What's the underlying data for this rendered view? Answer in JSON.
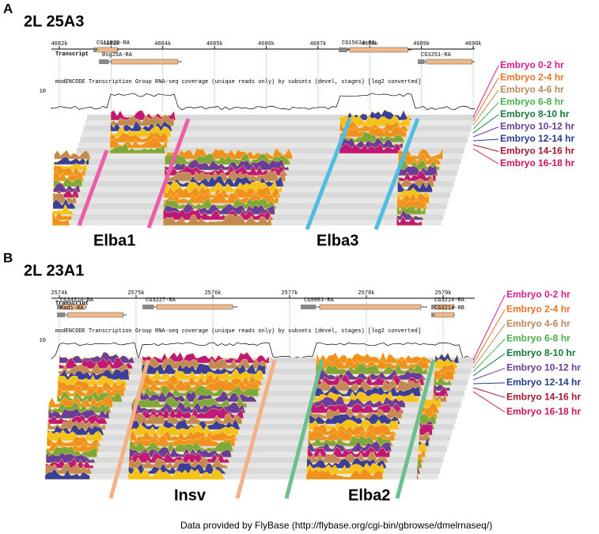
{
  "panels": [
    {
      "label": "A",
      "locus": "2L 25A3",
      "ruler_ticks": [
        "4682k",
        "4683k",
        "4684k",
        "4685k",
        "4686k",
        "4687k",
        "4688k",
        "4689k",
        "4690k"
      ],
      "track_label": "Transcript",
      "genes": [
        "CG11929-RA",
        "Bsg25A-RA",
        "CG15634-RA",
        "CG3251-RA"
      ],
      "coverage_title": "modENCODE Transcription Group RNA-seq coverage (unique reads only) by subsets (devel, stages) [log2 converted]",
      "scale_label": "10",
      "legend": [
        {
          "name": "Embryo 0-2 hr",
          "color": "#d81b8c"
        },
        {
          "name": "Embryo 2-4 hr",
          "color": "#e9732b"
        },
        {
          "name": "Embryo 4-6 hr",
          "color": "#b98a5c"
        },
        {
          "name": "Embryo 6-8 hr",
          "color": "#47b04b"
        },
        {
          "name": "Embryo 8-10 hr",
          "color": "#16783a"
        },
        {
          "name": "Embryo 10-12 hr",
          "color": "#6a3d9a"
        },
        {
          "name": "Embryo 12-14 hr",
          "color": "#263c8c"
        },
        {
          "name": "Embryo 14-16 hr",
          "color": "#a3182f"
        },
        {
          "name": "Embryo 16-18 hr",
          "color": "#cc1850"
        }
      ],
      "features": [
        "Elba1",
        "Elba3"
      ]
    },
    {
      "label": "B",
      "locus": "2L 23A1",
      "ruler_ticks": [
        "2574k",
        "2575k",
        "2576k",
        "2577k",
        "2578k",
        "2579k"
      ],
      "track_label": "Transcript",
      "genes": [
        "CG34314-RA",
        "Rad1-RA",
        "CG3227-RA",
        "CG9883-RA",
        "CG3214-RA",
        "CG3214-RB"
      ],
      "coverage_title": "modENCODE Transcription Group RNA-seq coverage (unique reads only) by subsets (devel, stages) [log2 converted]",
      "scale_label": "10",
      "legend": [
        {
          "name": "Embryo 0-2 hr",
          "color": "#d81b8c"
        },
        {
          "name": "Embryo 2-4 hr",
          "color": "#e9732b"
        },
        {
          "name": "Embryo 4-6 hr",
          "color": "#b98a5c"
        },
        {
          "name": "Embryo 6-8 hr",
          "color": "#47b04b"
        },
        {
          "name": "Embryo 8-10 hr",
          "color": "#16783a"
        },
        {
          "name": "Embryo 10-12 hr",
          "color": "#6a3d9a"
        },
        {
          "name": "Embryo 12-14 hr",
          "color": "#263c8c"
        },
        {
          "name": "Embryo 14-16 hr",
          "color": "#a3182f"
        },
        {
          "name": "Embryo 16-18 hr",
          "color": "#cc1850"
        }
      ],
      "features": [
        "Insv",
        "Elba2"
      ]
    }
  ],
  "footer": "Data provided by FlyBase (http://flybase.org/cgi-bin/gbrowse/dmelrnaseq/)"
}
